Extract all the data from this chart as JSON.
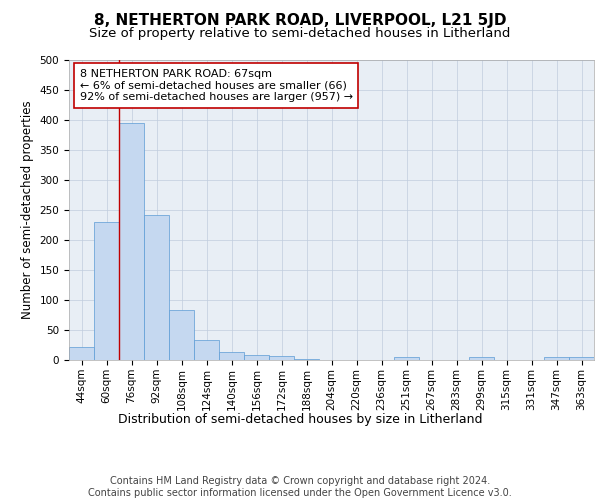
{
  "title": "8, NETHERTON PARK ROAD, LIVERPOOL, L21 5JD",
  "subtitle": "Size of property relative to semi-detached houses in Litherland",
  "xlabel": "Distribution of semi-detached houses by size in Litherland",
  "ylabel": "Number of semi-detached properties",
  "categories": [
    "44sqm",
    "60sqm",
    "76sqm",
    "92sqm",
    "108sqm",
    "124sqm",
    "140sqm",
    "156sqm",
    "172sqm",
    "188sqm",
    "204sqm",
    "220sqm",
    "236sqm",
    "251sqm",
    "267sqm",
    "283sqm",
    "299sqm",
    "315sqm",
    "331sqm",
    "347sqm",
    "363sqm"
  ],
  "values": [
    22,
    230,
    395,
    242,
    84,
    34,
    14,
    9,
    6,
    1,
    0,
    0,
    0,
    5,
    0,
    0,
    5,
    0,
    0,
    5,
    5
  ],
  "bar_color": "#c5d8f0",
  "bar_edgecolor": "#5b9bd5",
  "annotation_text": "8 NETHERTON PARK ROAD: 67sqm\n← 6% of semi-detached houses are smaller (66)\n92% of semi-detached houses are larger (957) →",
  "vline_x_index": 1,
  "vline_color": "#c00000",
  "box_color": "#ffffff",
  "box_edgecolor": "#c00000",
  "ylim": [
    0,
    500
  ],
  "yticks": [
    0,
    50,
    100,
    150,
    200,
    250,
    300,
    350,
    400,
    450,
    500
  ],
  "footer": "Contains HM Land Registry data © Crown copyright and database right 2024.\nContains public sector information licensed under the Open Government Licence v3.0.",
  "title_fontsize": 11,
  "subtitle_fontsize": 9.5,
  "xlabel_fontsize": 9,
  "ylabel_fontsize": 8.5,
  "tick_fontsize": 7.5,
  "annotation_fontsize": 8,
  "footer_fontsize": 7,
  "background_color": "#ffffff",
  "grid_color": "#c0ccdd",
  "ax_facecolor": "#e8eef5"
}
